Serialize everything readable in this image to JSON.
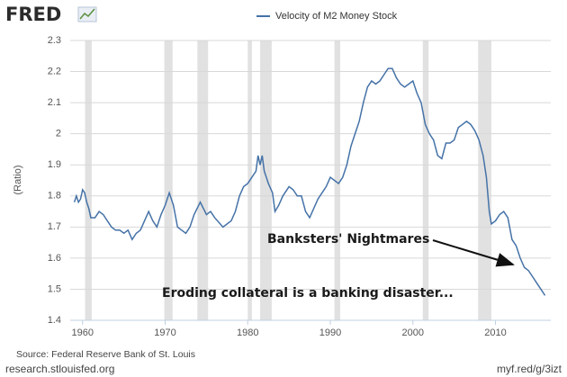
{
  "logo": "FRED",
  "chart_data": {
    "type": "line",
    "series": [
      {
        "name": "Velocity of M2 Money Stock",
        "color": "#4572a7",
        "x": [
          1959.0,
          1959.25,
          1959.5,
          1959.75,
          1960.0,
          1960.25,
          1960.5,
          1960.75,
          1961.0,
          1961.5,
          1962.0,
          1962.5,
          1963.0,
          1963.5,
          1964.0,
          1964.5,
          1965.0,
          1965.5,
          1966.0,
          1966.5,
          1967.0,
          1967.5,
          1968.0,
          1968.5,
          1969.0,
          1969.5,
          1970.0,
          1970.5,
          1971.0,
          1971.5,
          1972.0,
          1972.5,
          1973.0,
          1973.5,
          1974.25,
          1975.0,
          1975.5,
          1976.0,
          1977.0,
          1977.5,
          1978.0,
          1978.5,
          1979.0,
          1979.5,
          1980.0,
          1980.5,
          1981.0,
          1981.25,
          1981.5,
          1981.75,
          1982.0,
          1982.5,
          1983.0,
          1983.3,
          1983.75,
          1984.25,
          1985.0,
          1985.5,
          1986.0,
          1986.5,
          1987.0,
          1987.5,
          1988.0,
          1988.5,
          1989.0,
          1989.5,
          1990.0,
          1990.5,
          1991.0,
          1991.5,
          1992.0,
          1992.5,
          1993.0,
          1993.5,
          1994.0,
          1994.5,
          1995.0,
          1995.5,
          1996.0,
          1996.5,
          1997.0,
          1997.5,
          1998.0,
          1998.5,
          1999.0,
          1999.5,
          2000.0,
          2000.5,
          2001.0,
          2001.5,
          2002.0,
          2002.5,
          2003.0,
          2003.5,
          2004.0,
          2004.5,
          2005.0,
          2005.5,
          2006.0,
          2006.5,
          2007.0,
          2007.5,
          2008.0,
          2008.5,
          2008.9,
          2009.25,
          2009.5,
          2010.0,
          2010.5,
          2011.0,
          2011.5,
          2012.0,
          2012.5,
          2013.0,
          2013.5,
          2014.0,
          2014.5,
          2015.0,
          2015.5,
          2016.0
        ],
        "values": [
          1.78,
          1.8,
          1.78,
          1.79,
          1.82,
          1.81,
          1.78,
          1.76,
          1.73,
          1.73,
          1.75,
          1.74,
          1.72,
          1.7,
          1.69,
          1.69,
          1.68,
          1.69,
          1.66,
          1.68,
          1.69,
          1.72,
          1.75,
          1.72,
          1.7,
          1.74,
          1.77,
          1.81,
          1.77,
          1.7,
          1.69,
          1.68,
          1.7,
          1.74,
          1.78,
          1.74,
          1.75,
          1.73,
          1.7,
          1.71,
          1.72,
          1.75,
          1.8,
          1.83,
          1.84,
          1.86,
          1.88,
          1.93,
          1.9,
          1.93,
          1.88,
          1.84,
          1.81,
          1.75,
          1.77,
          1.8,
          1.83,
          1.82,
          1.8,
          1.8,
          1.75,
          1.73,
          1.76,
          1.79,
          1.81,
          1.83,
          1.86,
          1.85,
          1.84,
          1.86,
          1.9,
          1.96,
          2.0,
          2.04,
          2.1,
          2.15,
          2.17,
          2.16,
          2.17,
          2.19,
          2.21,
          2.21,
          2.18,
          2.16,
          2.15,
          2.16,
          2.17,
          2.13,
          2.1,
          2.03,
          2.0,
          1.98,
          1.93,
          1.92,
          1.97,
          1.97,
          1.98,
          2.02,
          2.03,
          2.04,
          2.03,
          2.01,
          1.98,
          1.93,
          1.86,
          1.75,
          1.71,
          1.72,
          1.74,
          1.75,
          1.73,
          1.66,
          1.64,
          1.6,
          1.57,
          1.56,
          1.54,
          1.52,
          1.5,
          1.48
        ]
      }
    ],
    "recessions": [
      [
        1960.3,
        1961.1
      ],
      [
        1969.9,
        1970.9
      ],
      [
        1973.9,
        1975.2
      ],
      [
        1980.0,
        1980.5
      ],
      [
        1981.5,
        1982.9
      ],
      [
        1990.5,
        1991.2
      ],
      [
        2001.2,
        2001.9
      ],
      [
        2007.9,
        2009.5
      ]
    ],
    "xlim": [
      1958.5,
      2016.7
    ],
    "xticks": [
      1960,
      1970,
      1980,
      1990,
      2000,
      2010
    ],
    "ylim": [
      1.4,
      2.3
    ],
    "yticks": [
      1.4,
      1.5,
      1.6,
      1.7,
      1.8,
      1.9,
      2.0,
      2.1,
      2.2,
      2.3
    ],
    "ylabel": "(Ratio)",
    "grid": true,
    "annotations": [
      "Banksters' Nightmares",
      "Eroding collateral is a banking disaster..."
    ],
    "source": "Source: Federal Reserve Bank of St. Louis"
  },
  "footer": {
    "left": "research.stlouisfed.org",
    "right": "myf.red/g/3izt"
  }
}
